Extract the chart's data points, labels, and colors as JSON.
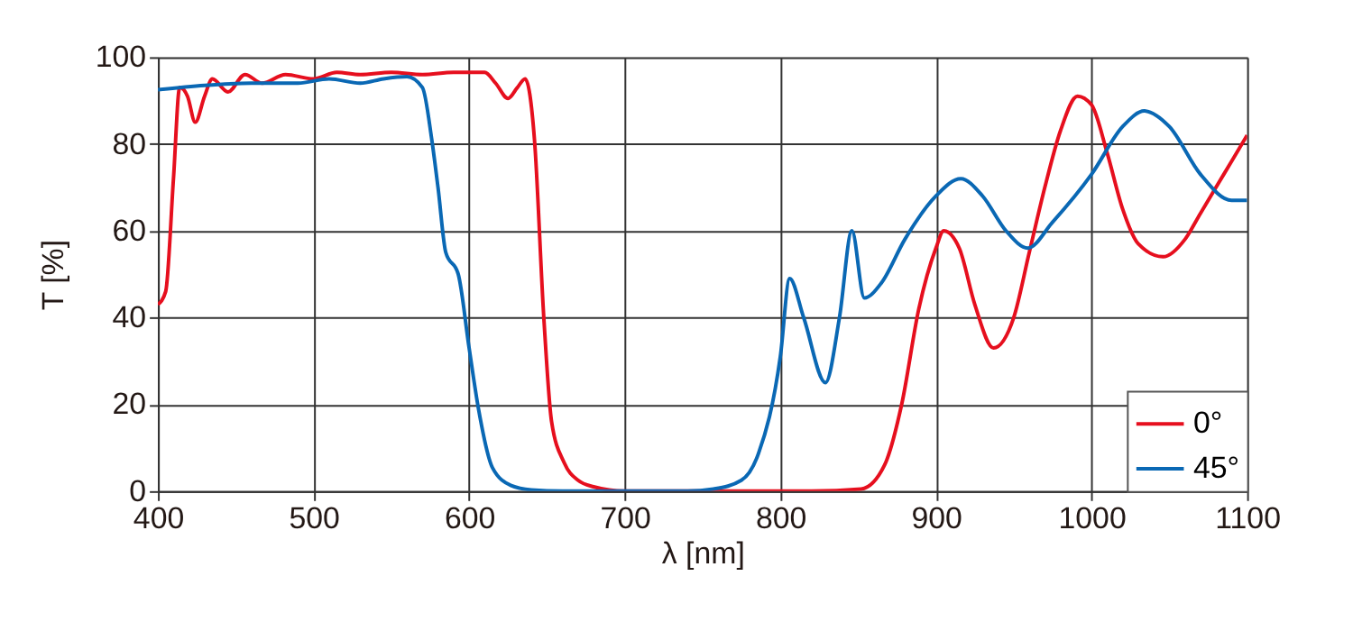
{
  "chart_data": {
    "type": "line",
    "xlabel": "λ [nm]",
    "ylabel": "T [%]",
    "xlim": [
      400,
      1100
    ],
    "xticks": [
      400,
      500,
      600,
      700,
      800,
      900,
      1000,
      1100
    ],
    "ylim": [
      0,
      100
    ],
    "yticks": [
      0,
      20,
      40,
      60,
      80,
      100
    ],
    "grid": true,
    "legend": "bottom right",
    "line_style": "solid",
    "marker": "none",
    "series": [
      {
        "name": "0°",
        "color": "#e60f1e",
        "x": [
          400,
          405,
          410,
          414,
          419,
          424,
          430,
          435,
          445,
          456,
          467,
          482,
          500,
          515,
          530,
          550,
          570,
          590,
          610,
          617,
          625,
          631,
          636,
          642,
          648,
          653,
          661,
          670,
          680,
          700,
          750,
          820,
          852,
          867,
          878,
          889,
          900,
          905,
          915,
          925,
          937,
          950,
          960,
          970,
          980,
          991,
          1000,
          1010,
          1020,
          1030,
          1046,
          1060,
          1070,
          1080,
          1090,
          1100
        ],
        "values": [
          43,
          46,
          72,
          93,
          91,
          85,
          91,
          95,
          92,
          96,
          94,
          96,
          95,
          96.5,
          96,
          96.5,
          96,
          96.5,
          96.5,
          94,
          90.5,
          93,
          95,
          81,
          40,
          16,
          6.6,
          2.5,
          1,
          0,
          0,
          0,
          0.5,
          6,
          20,
          42,
          56,
          60,
          56,
          43,
          33,
          40,
          55,
          70,
          83,
          91,
          89,
          78,
          65,
          57,
          54,
          58,
          64,
          70,
          76,
          82
        ]
      },
      {
        "name": "45°",
        "color": "#0a68b4",
        "x": [
          400,
          430,
          460,
          490,
          510,
          530,
          545,
          560,
          570,
          576,
          580,
          585,
          593,
          600,
          606,
          615,
          627,
          640,
          660,
          700,
          740,
          757,
          775,
          786,
          800,
          806,
          815,
          829,
          838,
          846,
          854,
          865,
          880,
          900,
          916,
          930,
          945,
          959,
          975,
          1000,
          1020,
          1034,
          1050,
          1070,
          1090,
          1100
        ],
        "values": [
          92.5,
          93.5,
          94,
          94,
          95,
          94,
          95,
          95.5,
          93,
          81,
          70,
          55,
          50,
          33,
          19,
          5.4,
          1.3,
          0.3,
          0,
          0,
          0,
          0.5,
          2.5,
          8.7,
          31,
          49,
          40,
          25,
          40,
          60,
          44.5,
          48,
          58,
          68,
          72,
          68,
          60,
          56,
          62,
          73,
          84,
          87.6,
          84,
          73,
          67,
          67
        ]
      }
    ]
  }
}
